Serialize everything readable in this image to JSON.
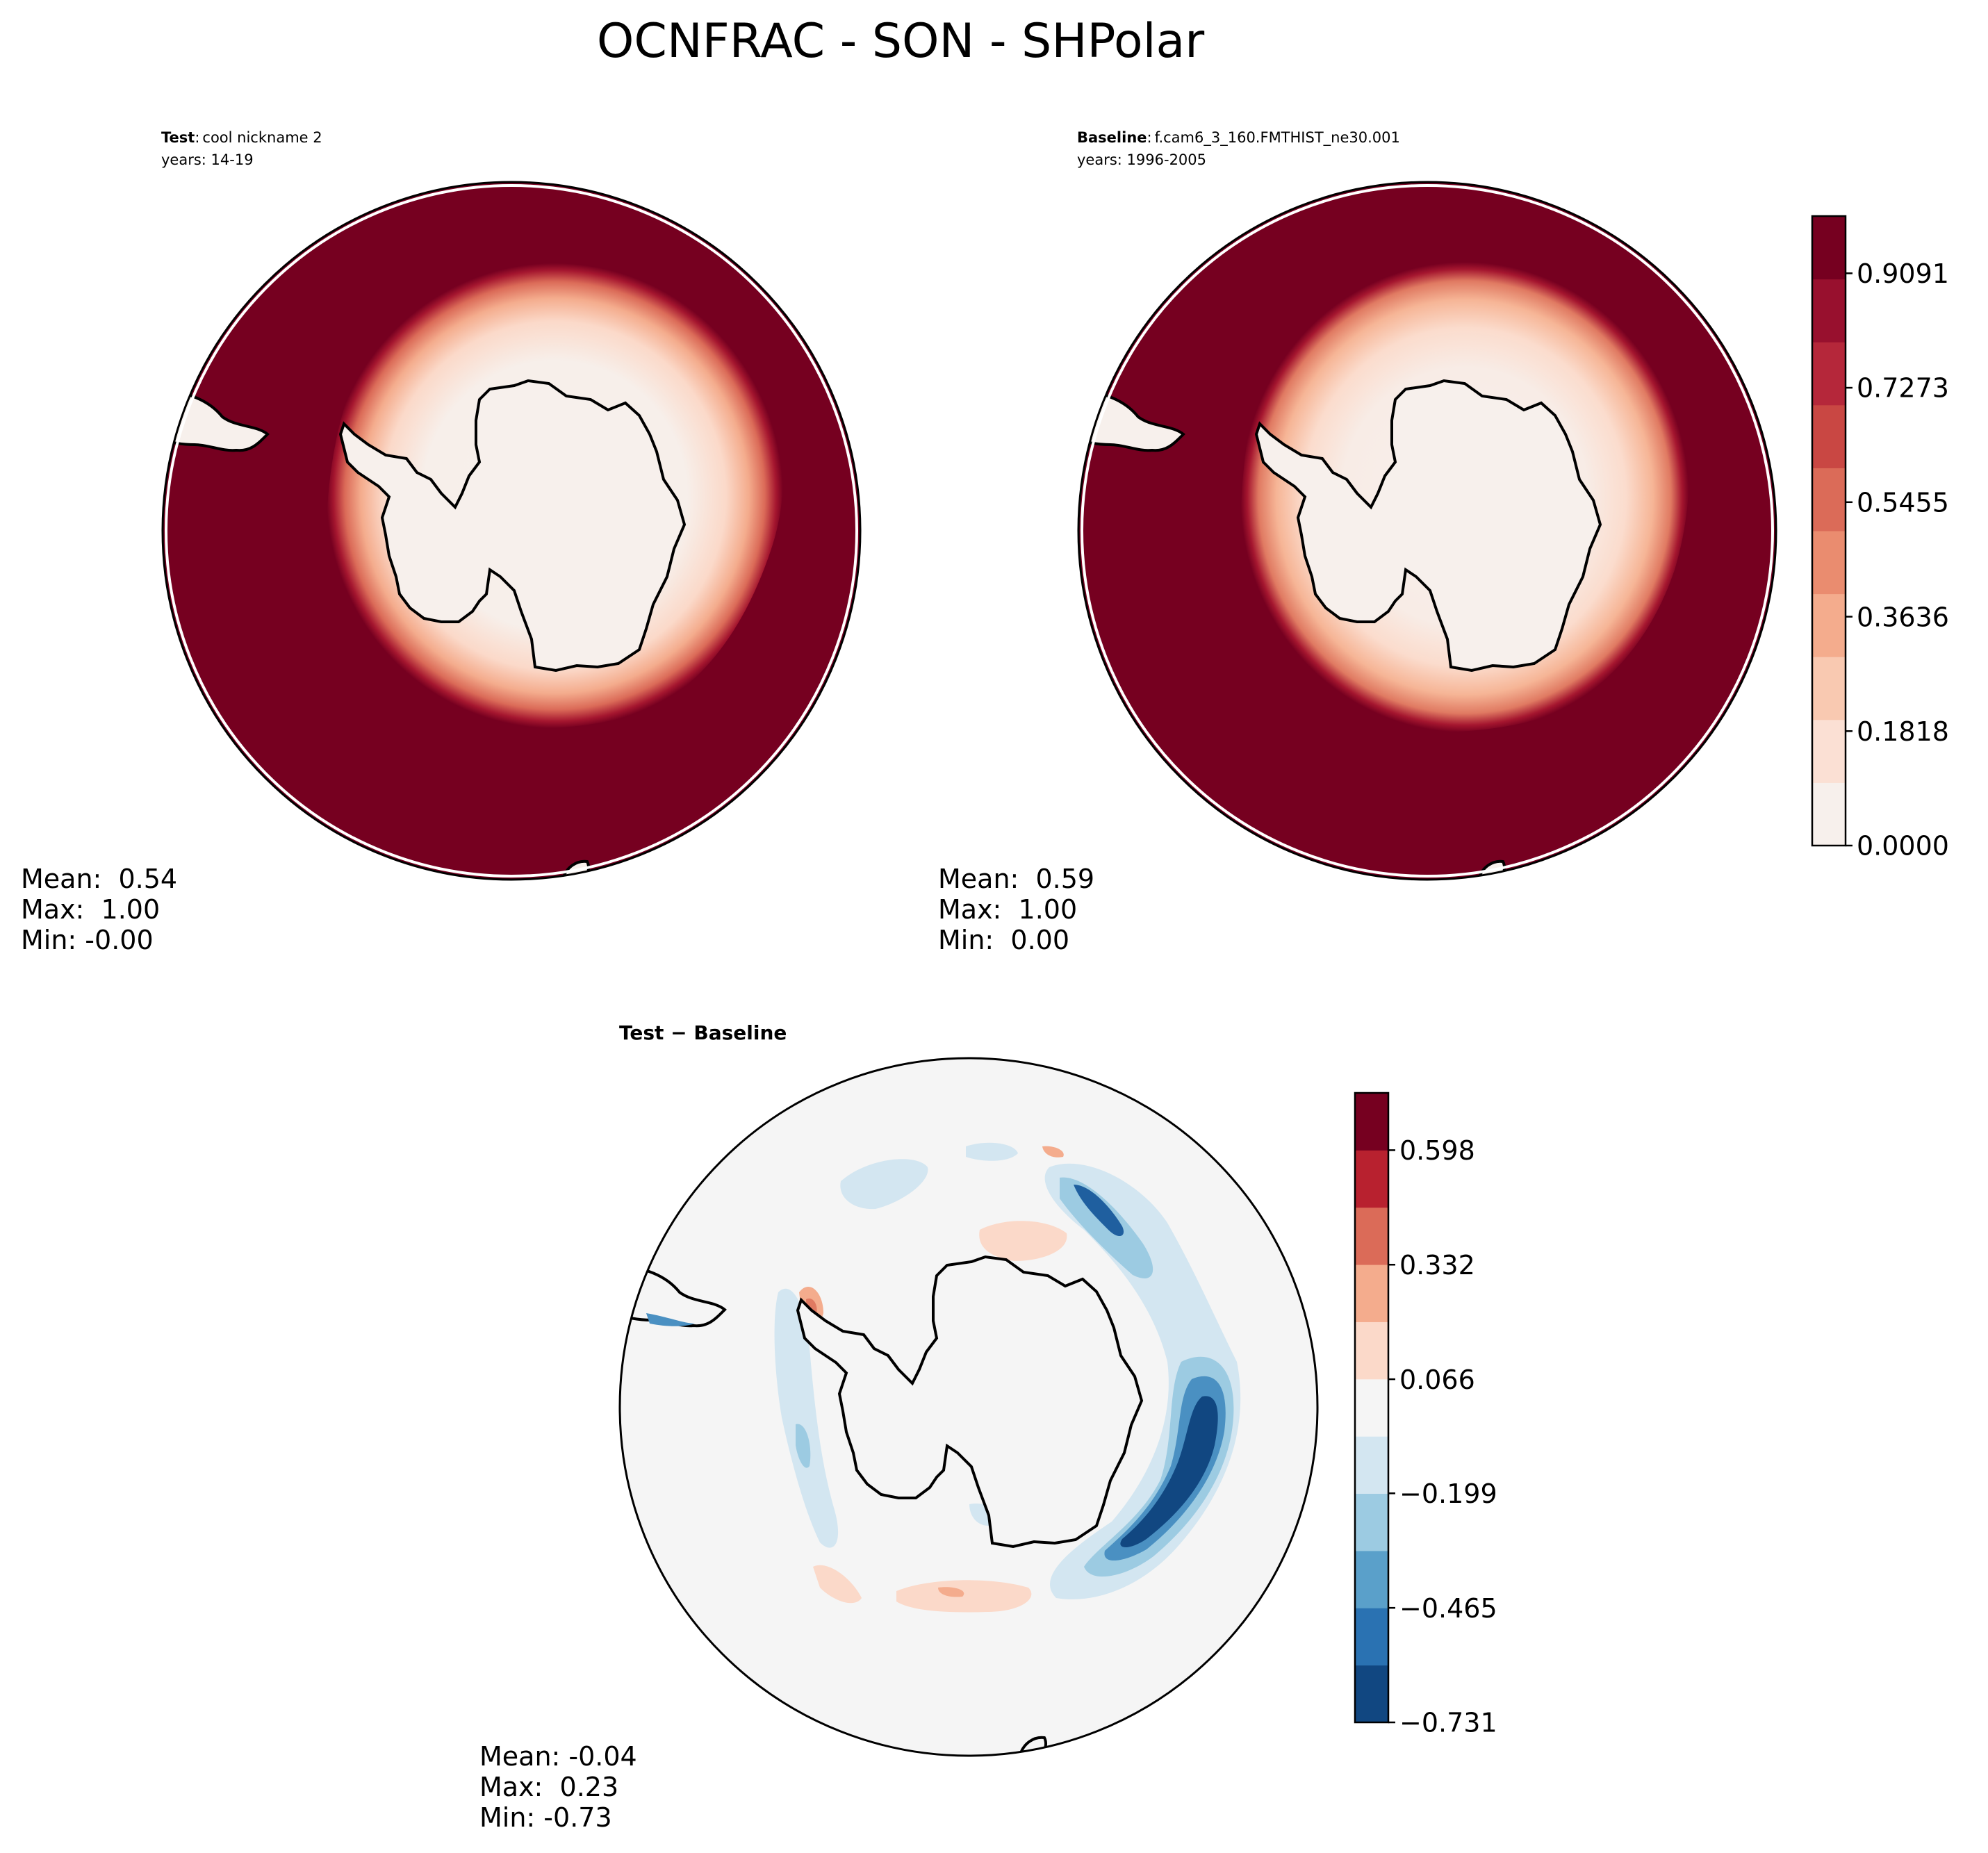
{
  "title": "OCNFRAC - SON - SHPolar",
  "colors": {
    "land": "#f7f0ec",
    "ocean": "#760020",
    "diff_bg": "#f5f5f5",
    "diff_pos": "#f6c2a6",
    "diff_pos_strong": "#e07a62",
    "diff_neg": "#d3e6f1",
    "diff_neg_mid": "#9ccbe2",
    "diff_neg_strong": "#4a90c2",
    "diff_neg_deep": "#114781"
  },
  "chart_data": [
    {
      "type": "heatmap",
      "panel": "test",
      "label_bold": "Test",
      "label_sep": ":",
      "label_text": "cool nickname 2",
      "years_text": "years: 14-19",
      "stats": {
        "mean": "Mean:  0.54",
        "max": "Max:  1.00",
        "min": "Min: -0.00"
      }
    },
    {
      "type": "heatmap",
      "panel": "baseline",
      "label_bold": "Baseline",
      "label_sep": ":",
      "label_text": "f.cam6_3_160.FMTHIST_ne30.001",
      "years_text": "years: 1996-2005",
      "stats": {
        "mean": "Mean:  0.59",
        "max": "Max:  1.00",
        "min": "Min:  0.00"
      }
    },
    {
      "type": "heatmap",
      "panel": "difference",
      "label_bold": "Test − Baseline",
      "stats": {
        "mean": "Mean: -0.04",
        "max": "Max:  0.23",
        "min": "Min: -0.73"
      }
    }
  ],
  "colorbar_main": {
    "ticks": [
      "0.0000",
      "0.1818",
      "0.3636",
      "0.5455",
      "0.7273",
      "0.9091"
    ],
    "tick_values": [
      0.0,
      0.1818,
      0.3636,
      0.5455,
      0.7273,
      0.9091
    ],
    "range": [
      0.0,
      1.0
    ],
    "levels": [
      "#f7f0ec",
      "#fbe0d4",
      "#f9c9b1",
      "#f4ac8d",
      "#ea8c6f",
      "#db6b58",
      "#c94743",
      "#b5273a",
      "#98102e",
      "#760020"
    ]
  },
  "colorbar_diff": {
    "ticks": [
      "0.598",
      "0.332",
      "0.066",
      "−0.199",
      "−0.465",
      "−0.731"
    ],
    "tick_values": [
      0.598,
      0.332,
      0.066,
      -0.199,
      -0.465,
      -0.731
    ],
    "range": [
      -0.731,
      0.731
    ],
    "levels": [
      "#114781",
      "#2a72b2",
      "#5aa0ca",
      "#9ccbe2",
      "#d3e6f1",
      "#f5f5f5",
      "#fbd9c9",
      "#f4ac8d",
      "#db6b58",
      "#b8212f",
      "#760020"
    ]
  }
}
